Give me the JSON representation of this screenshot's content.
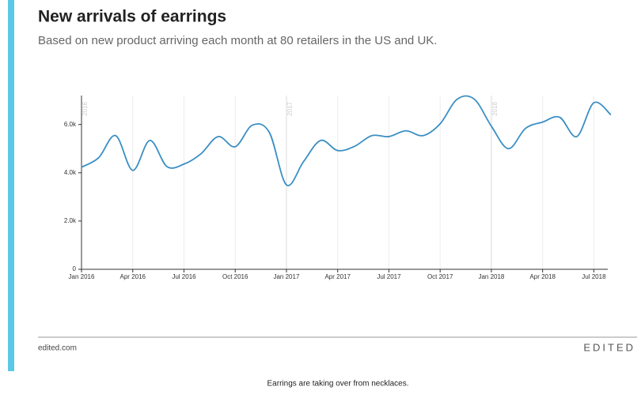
{
  "chart_data": {
    "type": "line",
    "title": "New arrivals of earrings",
    "subtitle": "Based on new product arriving each month at 80 retailers in the US and UK.",
    "x": [
      "2016-01",
      "2016-02",
      "2016-03",
      "2016-04",
      "2016-05",
      "2016-06",
      "2016-07",
      "2016-08",
      "2016-09",
      "2016-10",
      "2016-11",
      "2016-12",
      "2017-01",
      "2017-02",
      "2017-03",
      "2017-04",
      "2017-05",
      "2017-06",
      "2017-07",
      "2017-08",
      "2017-09",
      "2017-10",
      "2017-11",
      "2017-12",
      "2018-01",
      "2018-02",
      "2018-03",
      "2018-04",
      "2018-05",
      "2018-06",
      "2018-07",
      "2018-08"
    ],
    "series": [
      {
        "name": "Earrings",
        "color": "#3a8fc4",
        "values": [
          4230,
          4620,
          5540,
          4100,
          5340,
          4260,
          4360,
          4790,
          5500,
          5080,
          5970,
          5670,
          3500,
          4460,
          5340,
          4920,
          5100,
          5540,
          5500,
          5740,
          5540,
          6030,
          7050,
          7050,
          5930,
          5000,
          5840,
          6100,
          6300,
          5500,
          6900,
          6400
        ]
      }
    ],
    "xticks": [
      {
        "value": "2016-01",
        "label": "Jan 2016"
      },
      {
        "value": "2016-04",
        "label": "Apr 2016"
      },
      {
        "value": "2016-07",
        "label": "Jul 2016"
      },
      {
        "value": "2016-10",
        "label": "Oct 2016"
      },
      {
        "value": "2017-01",
        "label": "Jan 2017"
      },
      {
        "value": "2017-04",
        "label": "Apr 2017"
      },
      {
        "value": "2017-07",
        "label": "Jul 2017"
      },
      {
        "value": "2017-10",
        "label": "Oct 2017"
      },
      {
        "value": "2018-01",
        "label": "Jan 2018"
      },
      {
        "value": "2018-04",
        "label": "Apr 2018"
      },
      {
        "value": "2018-07",
        "label": "Jul 2018"
      }
    ],
    "ylim": [
      0,
      7200
    ],
    "yticks": [
      0,
      {
        "value": 2000,
        "label": "2.0k"
      },
      {
        "value": 4000,
        "label": "4.0k"
      },
      {
        "value": 6000,
        "label": "6.0k"
      }
    ],
    "year_labels": [
      {
        "value": "2016-01",
        "label": "2016"
      },
      {
        "value": "2017-01",
        "label": "2017"
      },
      {
        "value": "2018-01",
        "label": "2018"
      }
    ],
    "grid": true
  },
  "footer": {
    "source": "edited.com",
    "logo": "EDITED",
    "caption": "Earrings are taking over from necklaces."
  }
}
